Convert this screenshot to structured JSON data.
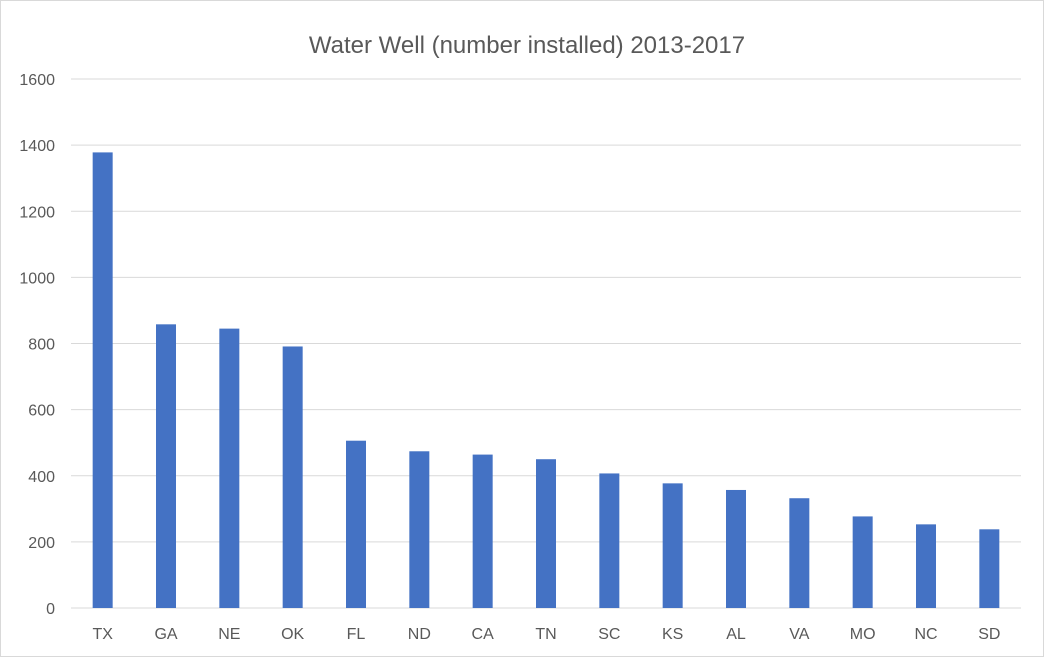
{
  "chart_data": {
    "type": "bar",
    "title": "Water Well (number installed) 2013-2017",
    "xlabel": "",
    "ylabel": "",
    "categories": [
      "TX",
      "GA",
      "NE",
      "OK",
      "FL",
      "ND",
      "CA",
      "TN",
      "SC",
      "KS",
      "AL",
      "VA",
      "MO",
      "NC",
      "SD"
    ],
    "values": [
      1378,
      858,
      845,
      791,
      506,
      474,
      464,
      450,
      407,
      377,
      357,
      332,
      277,
      253,
      238
    ],
    "ylim": [
      0,
      1600
    ],
    "yticks": [
      0,
      200,
      400,
      600,
      800,
      1000,
      1200,
      1400,
      1600
    ],
    "grid": true,
    "legend": "none",
    "bar_color": "#4472c4",
    "grid_color": "#d9d9d9",
    "text_color": "#595959"
  }
}
